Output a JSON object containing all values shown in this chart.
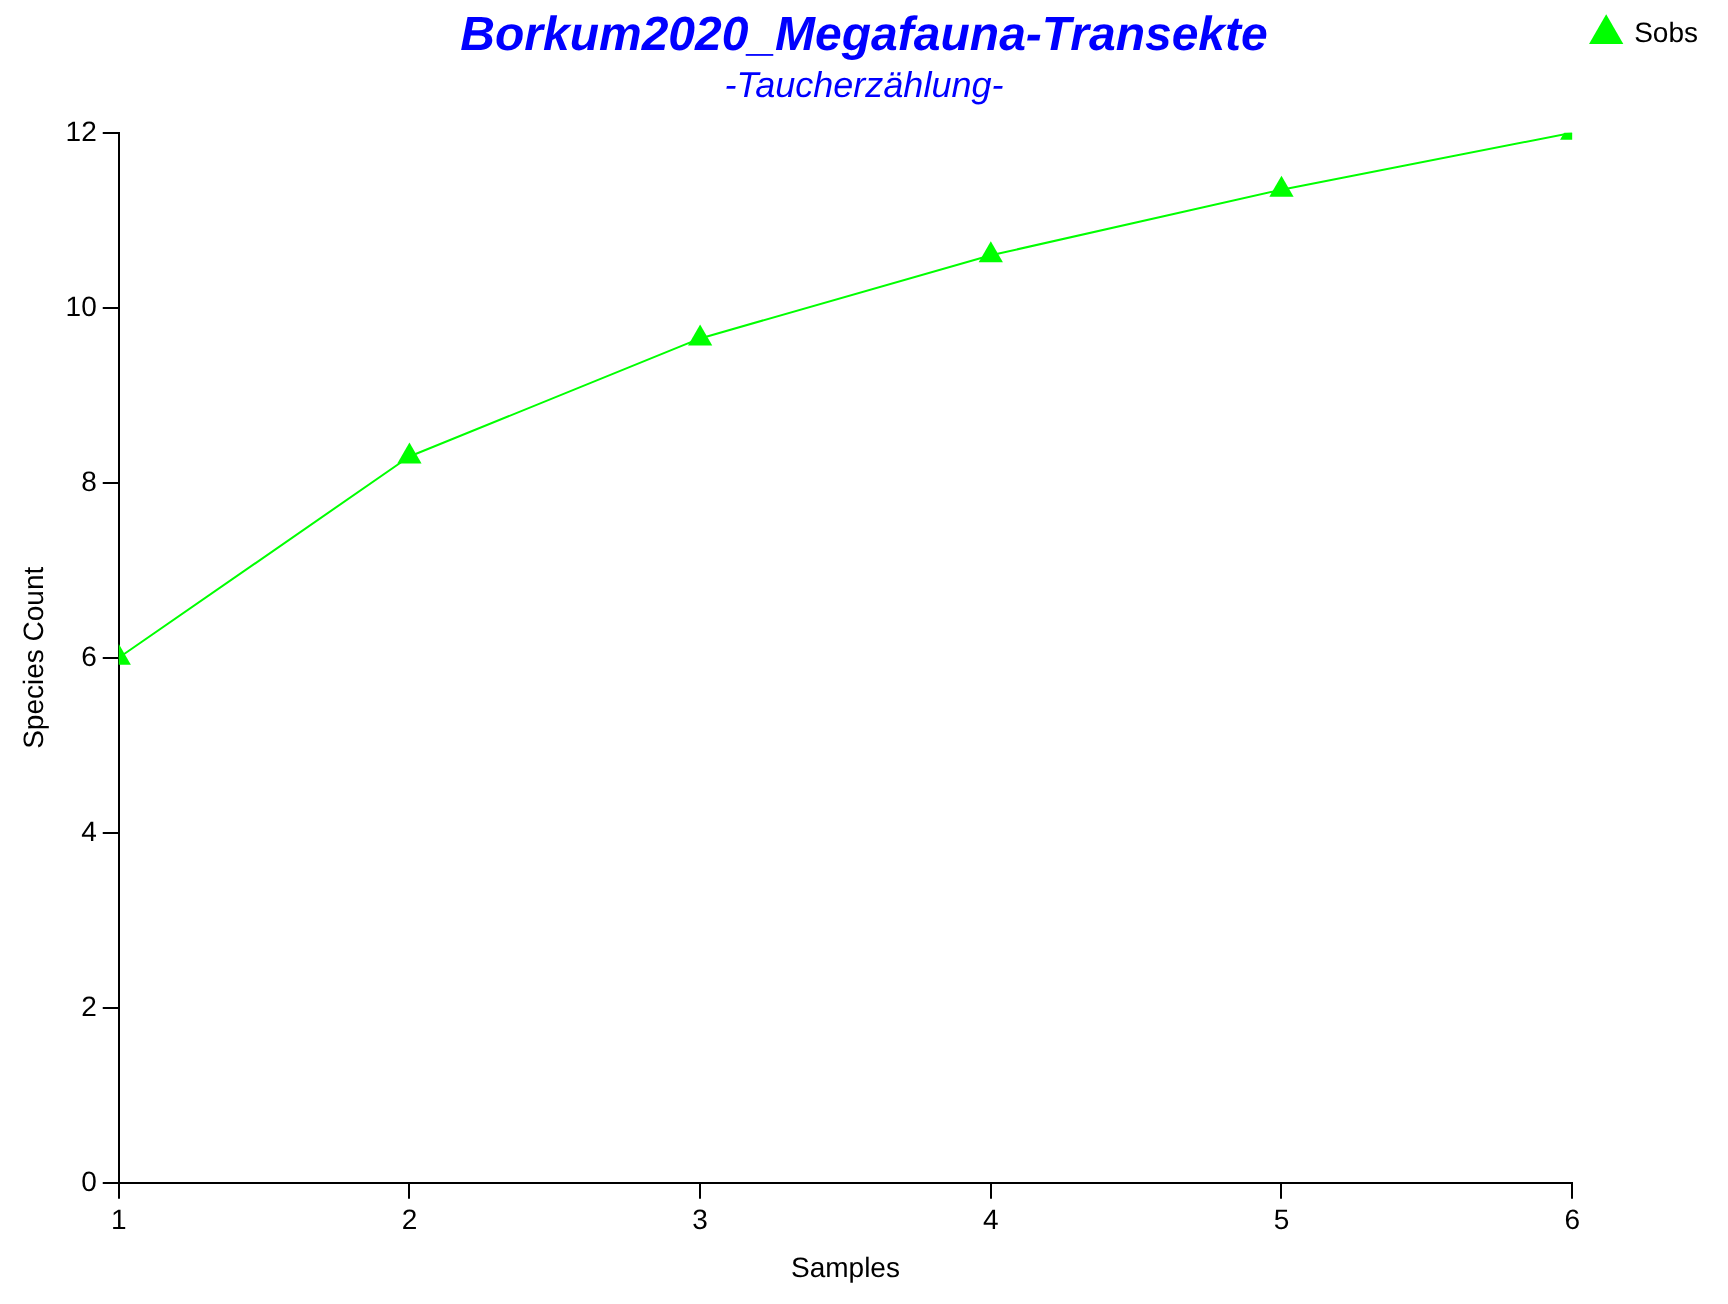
{
  "chart_data": {
    "type": "line",
    "title": "Borkum2020_Megafauna-Transekte",
    "subtitle": "-Taucherzählung-",
    "xlabel": "Samples",
    "ylabel": "Species Count",
    "x": [
      1,
      2,
      3,
      4,
      5,
      6
    ],
    "series": [
      {
        "name": "Sobs",
        "color": "#00ff00",
        "values": [
          6,
          8.3,
          9.65,
          10.6,
          11.35,
          12
        ]
      }
    ],
    "xlim": [
      1,
      6
    ],
    "xticks": [
      1,
      2,
      3,
      4,
      5,
      6
    ],
    "ylim": [
      0,
      12
    ],
    "yticks": [
      0,
      2,
      4,
      6,
      8,
      10,
      12
    ],
    "grid": false,
    "legend": "top right",
    "marker": "triangle",
    "line_style": "solid"
  }
}
